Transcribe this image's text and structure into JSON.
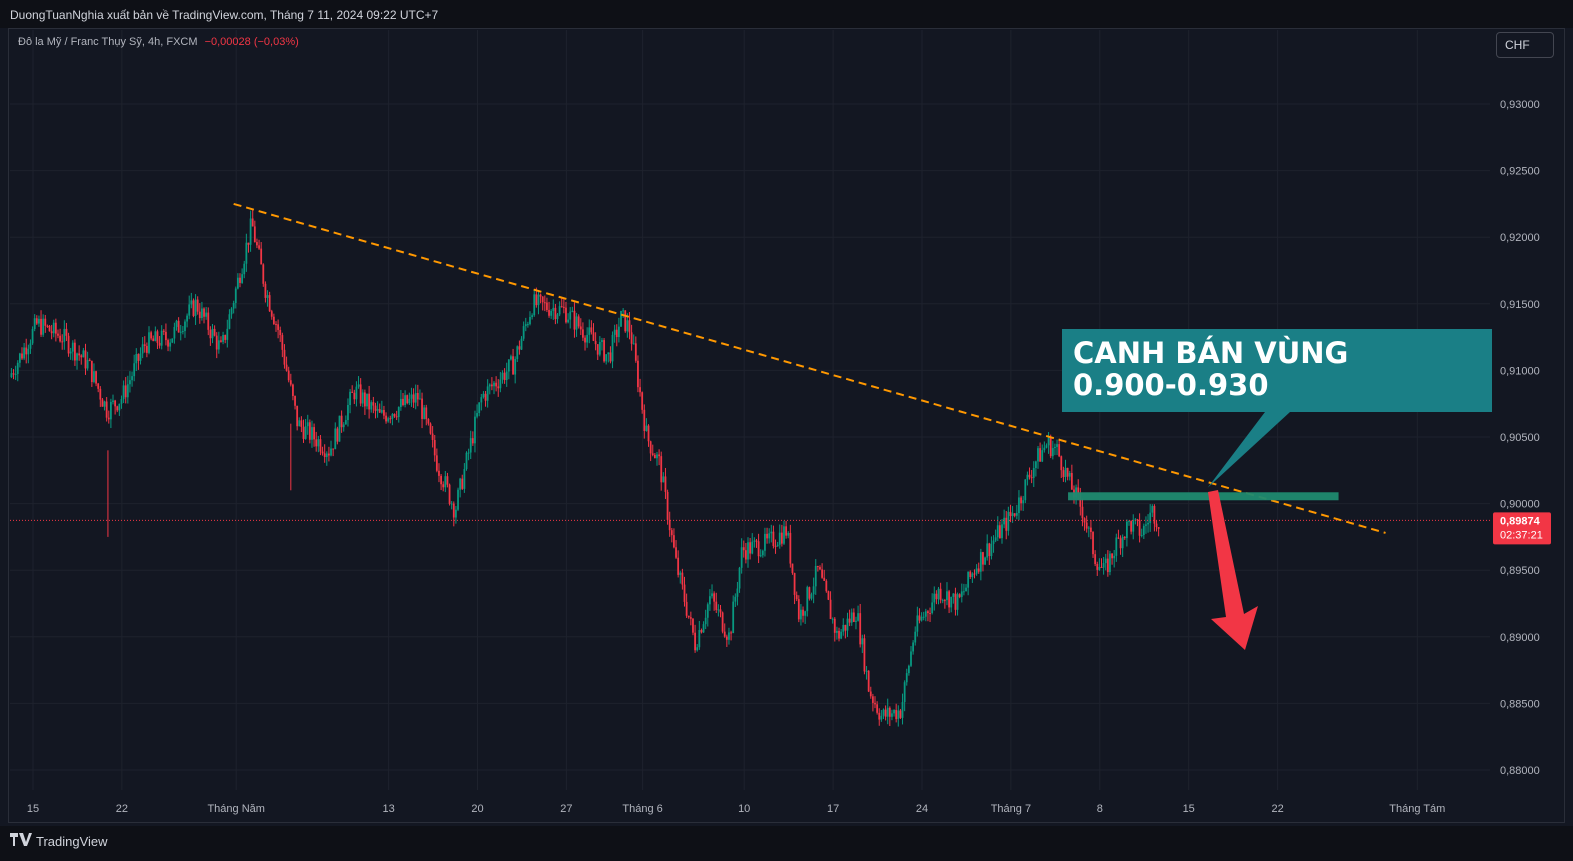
{
  "header": {
    "published_by": "DuongTuanNghia xuất bản về TradingView.com, Tháng 7 11, 2024 09:22 UTC+7"
  },
  "symbol": {
    "description": "Đô la Mỹ / Franc Thụy Sỹ, 4h, FXCM",
    "change": "−0,00028 (−0,03%)"
  },
  "currency_button": "CHF",
  "footer": {
    "logo_text": "TradingView",
    "logo_icon": "tradingview-logo-icon"
  },
  "colors": {
    "background": "#131722",
    "up": "#089981",
    "down": "#f23645",
    "trendline": "#ff9800",
    "callout": "#1a7f86",
    "zone": "#1f8a70",
    "arrow": "#f23645",
    "grid": "#1e222d"
  },
  "chart_data": {
    "type": "candlestick",
    "symbol": "USD/CHF",
    "timeframe": "4h",
    "ylim": [
      0.876,
      0.9335
    ],
    "y_ticks": [
      "0,93000",
      "0,92500",
      "0,92000",
      "0,91500",
      "0,91000",
      "0,90500",
      "0,90000",
      "0,89500",
      "0,89000",
      "0,88500",
      "0,88000"
    ],
    "x_ticks": [
      {
        "label": "15",
        "day": 0
      },
      {
        "label": "22",
        "day": 7
      },
      {
        "label": "Tháng Năm",
        "day": 16
      },
      {
        "label": "13",
        "day": 28
      },
      {
        "label": "20",
        "day": 35
      },
      {
        "label": "27",
        "day": 42
      },
      {
        "label": "Tháng 6",
        "day": 48
      },
      {
        "label": "10",
        "day": 56
      },
      {
        "label": "17",
        "day": 63
      },
      {
        "label": "24",
        "day": 70
      },
      {
        "label": "Tháng 7",
        "day": 77
      },
      {
        "label": "8",
        "day": 84
      },
      {
        "label": "15",
        "day": 91
      },
      {
        "label": "22",
        "day": 98
      },
      {
        "label": "Tháng Tám",
        "day": 109
      }
    ],
    "price_path": [
      {
        "day": -1.7,
        "price": 0.9095
      },
      {
        "day": 0.5,
        "price": 0.9135
      },
      {
        "day": 2.5,
        "price": 0.9125
      },
      {
        "day": 4.5,
        "price": 0.9105
      },
      {
        "day": 6.0,
        "price": 0.907
      },
      {
        "day": 7.2,
        "price": 0.908
      },
      {
        "day": 9.0,
        "price": 0.912
      },
      {
        "day": 11.0,
        "price": 0.9125
      },
      {
        "day": 13.0,
        "price": 0.915
      },
      {
        "day": 15.0,
        "price": 0.9115
      },
      {
        "day": 16.5,
        "price": 0.9175
      },
      {
        "day": 17.4,
        "price": 0.921
      },
      {
        "day": 18.5,
        "price": 0.916
      },
      {
        "day": 19.5,
        "price": 0.913
      },
      {
        "day": 21.0,
        "price": 0.906
      },
      {
        "day": 23.5,
        "price": 0.904
      },
      {
        "day": 25.5,
        "price": 0.9085
      },
      {
        "day": 27.5,
        "price": 0.9065
      },
      {
        "day": 30.5,
        "price": 0.908
      },
      {
        "day": 32.0,
        "price": 0.903
      },
      {
        "day": 33.4,
        "price": 0.8995
      },
      {
        "day": 35.5,
        "price": 0.908
      },
      {
        "day": 38.0,
        "price": 0.9105
      },
      {
        "day": 39.5,
        "price": 0.915
      },
      {
        "day": 42.0,
        "price": 0.9145
      },
      {
        "day": 43.5,
        "price": 0.913
      },
      {
        "day": 44.5,
        "price": 0.912
      },
      {
        "day": 45.5,
        "price": 0.911
      },
      {
        "day": 46.5,
        "price": 0.914
      },
      {
        "day": 47.2,
        "price": 0.913
      },
      {
        "day": 48.5,
        "price": 0.905
      },
      {
        "day": 49.5,
        "price": 0.903
      },
      {
        "day": 50.8,
        "price": 0.8955
      },
      {
        "day": 52.3,
        "price": 0.8895
      },
      {
        "day": 53.5,
        "price": 0.893
      },
      {
        "day": 55.0,
        "price": 0.89
      },
      {
        "day": 56.0,
        "price": 0.8965
      },
      {
        "day": 58.0,
        "price": 0.897
      },
      {
        "day": 59.5,
        "price": 0.898
      },
      {
        "day": 60.5,
        "price": 0.8915
      },
      {
        "day": 62.0,
        "price": 0.895
      },
      {
        "day": 63.5,
        "price": 0.89
      },
      {
        "day": 65.0,
        "price": 0.892
      },
      {
        "day": 66.0,
        "price": 0.886
      },
      {
        "day": 67.0,
        "price": 0.884
      },
      {
        "day": 68.5,
        "price": 0.8845
      },
      {
        "day": 69.6,
        "price": 0.8905
      },
      {
        "day": 71.5,
        "price": 0.8935
      },
      {
        "day": 73.0,
        "price": 0.8925
      },
      {
        "day": 74.5,
        "price": 0.8955
      },
      {
        "day": 76.0,
        "price": 0.8975
      },
      {
        "day": 77.5,
        "price": 0.8995
      },
      {
        "day": 79.0,
        "price": 0.903
      },
      {
        "day": 80.0,
        "price": 0.9045
      },
      {
        "day": 80.8,
        "price": 0.904
      },
      {
        "day": 81.8,
        "price": 0.9015
      },
      {
        "day": 82.8,
        "price": 0.8995
      },
      {
        "day": 83.8,
        "price": 0.896
      },
      {
        "day": 84.5,
        "price": 0.8948
      },
      {
        "day": 85.5,
        "price": 0.897
      },
      {
        "day": 86.5,
        "price": 0.8985
      },
      {
        "day": 87.5,
        "price": 0.8978
      },
      {
        "day": 88.3,
        "price": 0.8995
      },
      {
        "day": 88.8,
        "price": 0.8987
      }
    ],
    "last_price": "0,89874",
    "countdown": "02:37:21",
    "annotations": {
      "callout_text_line1": "CANH BÁN VÙNG",
      "callout_text_line2": "0.900-0.930"
    }
  }
}
